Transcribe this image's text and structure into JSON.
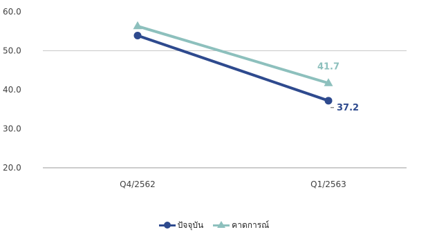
{
  "chart_data": {
    "type": "line",
    "title": "",
    "categories": [
      "Q4/2562",
      "Q1/2563"
    ],
    "ylim": [
      20,
      60
    ],
    "yticks": [
      "60.0",
      "50.0",
      "40.0",
      "30.0",
      "20.0"
    ],
    "grid": true,
    "legend_position": "bottom",
    "series": [
      {
        "name": "ปัจจุบัน",
        "values": [
          53.9,
          37.2
        ],
        "color": "#2E4A8E",
        "marker": "circle",
        "labels": [
          "",
          "37.2"
        ],
        "label_color": "#2E4A8E"
      },
      {
        "name": "คาดการณ์",
        "values": [
          56.3,
          41.7
        ],
        "color": "#8DC0BD",
        "marker": "triangle",
        "labels": [
          "",
          "41.7"
        ],
        "label_color": "#8DC0BD"
      }
    ]
  }
}
